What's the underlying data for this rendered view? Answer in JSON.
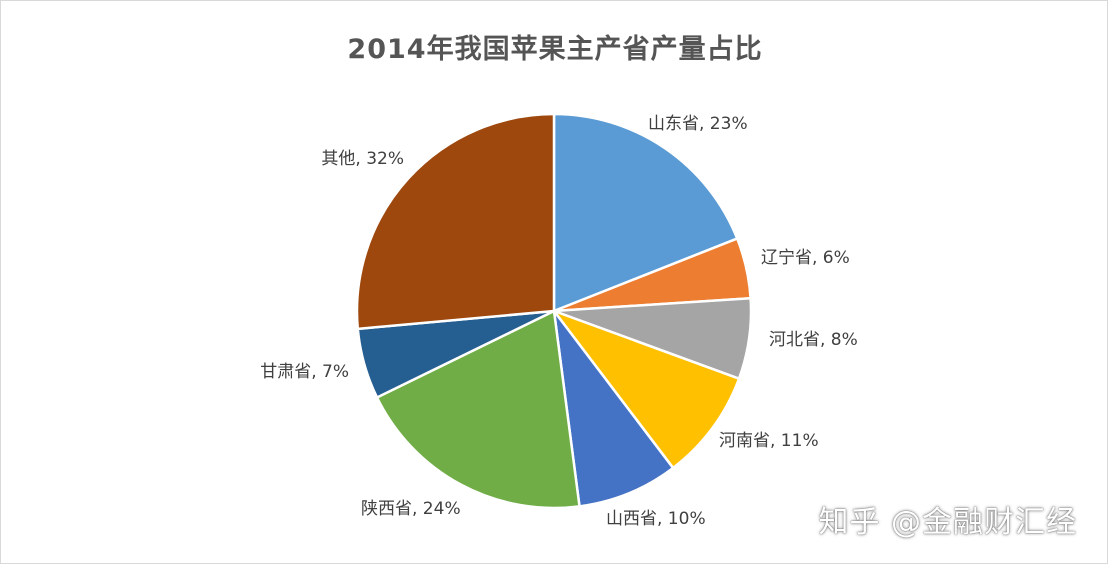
{
  "chart_data": {
    "type": "pie",
    "title": "2014年我国苹果主产省产量占比",
    "slices": [
      {
        "name": "山东省",
        "value": 23,
        "label": "山东省, 23%",
        "color": "#5b9bd5"
      },
      {
        "name": "辽宁省",
        "value": 6,
        "label": "辽宁省, 6%",
        "color": "#ed7d31"
      },
      {
        "name": "河北省",
        "value": 8,
        "label": "河北省, 8%",
        "color": "#a5a5a5"
      },
      {
        "name": "河南省",
        "value": 11,
        "label": "河南省, 11%",
        "color": "#ffc000"
      },
      {
        "name": "山西省",
        "value": 10,
        "label": "山西省, 10%",
        "color": "#4472c4"
      },
      {
        "name": "陕西省",
        "value": 24,
        "label": "陕西省, 24%",
        "color": "#70ad47"
      },
      {
        "name": "甘肃省",
        "value": 7,
        "label": "甘肃省, 7%",
        "color": "#255e91"
      },
      {
        "name": "其他",
        "value": 32,
        "label": "其他, 32%",
        "color": "#9e480e"
      }
    ],
    "legend": "none"
  },
  "watermark": "知乎 @金融财汇经"
}
